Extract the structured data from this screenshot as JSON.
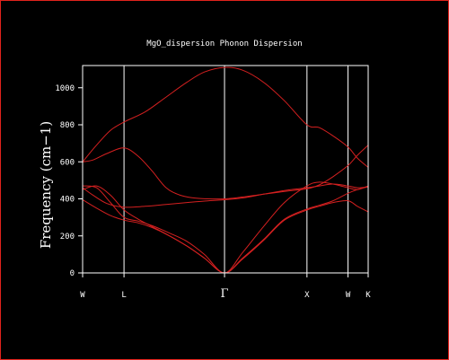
{
  "chart_data": {
    "type": "line",
    "title": "MgO_dispersion Phonon Dispersion",
    "ylabel": "Frequency (cm−1)",
    "xlabel": "",
    "ylim": [
      0,
      1120
    ],
    "xlim": [
      0,
      8.21
    ],
    "y_ticks": [
      0,
      200,
      400,
      600,
      800,
      1000
    ],
    "high_symmetry_points": [
      {
        "label": "W",
        "x": 0
      },
      {
        "label": "L",
        "x": 1.19
      },
      {
        "label": "Γ",
        "x": 4.08
      },
      {
        "label": "X",
        "x": 6.45
      },
      {
        "label": "W",
        "x": 7.63
      },
      {
        "label": "K",
        "x": 8.21
      }
    ],
    "line_color": "#d42020",
    "axis_color": "#ffffff",
    "frame_color": "#e0231c",
    "grid": false,
    "series": [
      {
        "x": [
          0,
          0.4,
          0.8,
          1.19,
          1.8,
          2.4,
          3.0,
          3.5,
          4.08,
          4.6,
          5.2,
          5.8,
          6.45,
          6.8,
          7.2,
          7.63,
          7.9,
          8.21
        ],
        "values": [
          600,
          690,
          770,
          815,
          870,
          950,
          1030,
          1085,
          1110,
          1095,
          1030,
          930,
          800,
          785,
          740,
          680,
          620,
          570
        ]
      },
      {
        "x": [
          0,
          0.3,
          0.7,
          1.19,
          1.6,
          2.0,
          2.4,
          2.8,
          3.2,
          3.6,
          4.08,
          4.6,
          5.2,
          5.8,
          6.45,
          6.8,
          7.2,
          7.63,
          7.9,
          8.21
        ],
        "values": [
          600,
          610,
          645,
          675,
          630,
          550,
          460,
          420,
          405,
          400,
          400,
          410,
          425,
          440,
          455,
          475,
          520,
          580,
          635,
          690
        ]
      },
      {
        "x": [
          0,
          0.3,
          0.7,
          1.19,
          1.8,
          2.4,
          3.0,
          3.5,
          4.08,
          4.6,
          5.2,
          5.8,
          6.45,
          6.8,
          7.2,
          7.63,
          7.9,
          8.21
        ],
        "values": [
          460,
          420,
          375,
          355,
          360,
          370,
          380,
          388,
          395,
          405,
          425,
          445,
          460,
          470,
          480,
          470,
          460,
          465
        ]
      },
      {
        "x": [
          0,
          0.4,
          0.8,
          1.19,
          1.6,
          2.0,
          2.5,
          3.0,
          3.5,
          4.08,
          4.6,
          5.2,
          5.8,
          6.45,
          6.8,
          7.2,
          7.63,
          7.9,
          8.21
        ],
        "values": [
          470,
          460,
          380,
          300,
          280,
          255,
          215,
          170,
          100,
          0,
          110,
          250,
          380,
          470,
          490,
          480,
          460,
          450,
          470
        ]
      },
      {
        "x": [
          0,
          0.4,
          0.8,
          1.19,
          1.6,
          2.0,
          2.5,
          3.0,
          3.5,
          4.08,
          4.6,
          5.2,
          5.8,
          6.45,
          6.8,
          7.2,
          7.63,
          7.9,
          8.21
        ],
        "values": [
          450,
          470,
          420,
          340,
          290,
          250,
          200,
          145,
          80,
          0,
          80,
          180,
          290,
          345,
          365,
          390,
          430,
          450,
          465
        ]
      },
      {
        "x": [
          0,
          0.4,
          0.8,
          1.19,
          1.6,
          2.0,
          2.5,
          3.0,
          3.5,
          4.08,
          4.6,
          5.2,
          5.8,
          6.45,
          6.8,
          7.2,
          7.63,
          7.9,
          8.21
        ],
        "values": [
          395,
          350,
          310,
          285,
          270,
          245,
          200,
          145,
          80,
          0,
          75,
          175,
          285,
          340,
          360,
          380,
          390,
          360,
          330
        ]
      }
    ]
  }
}
